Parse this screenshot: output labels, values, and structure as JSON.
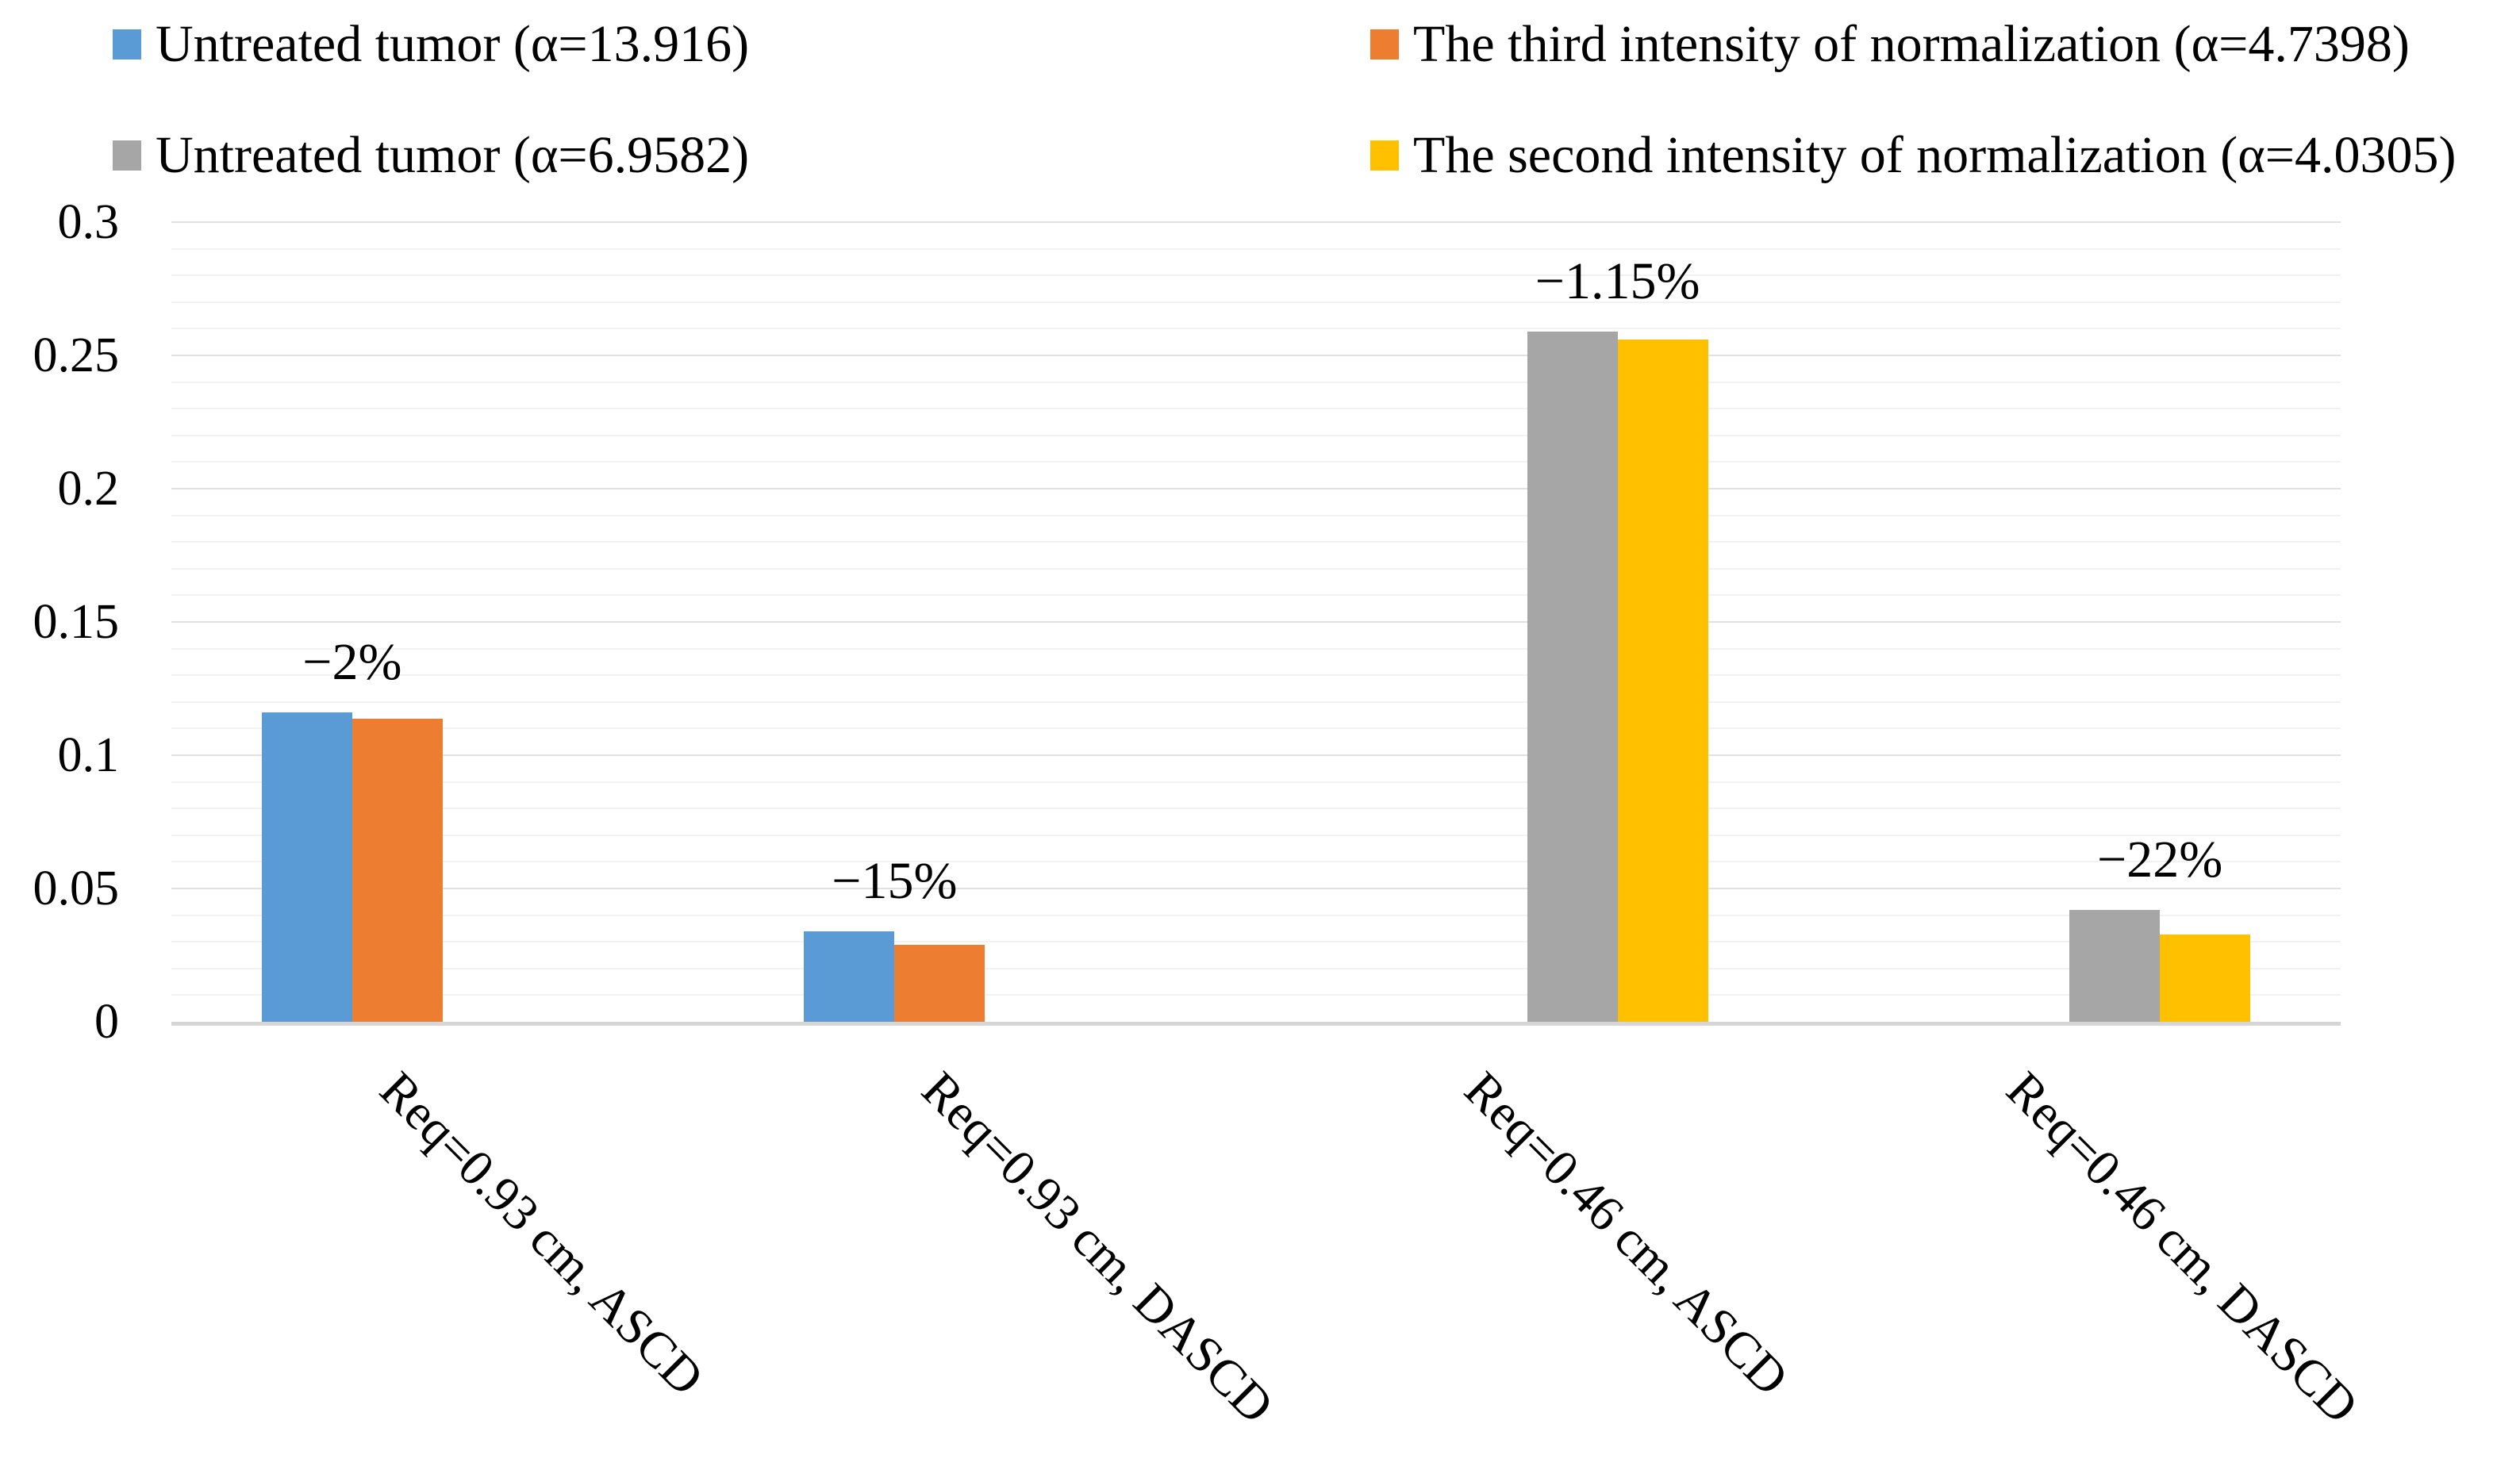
{
  "figure": {
    "background": "#ffffff",
    "text_color": "#000000"
  },
  "legend": {
    "position": "top",
    "items": [
      {
        "label": "Untreated tumor (α=13.916)",
        "color": "#5B9BD5"
      },
      {
        "label": "The third intensity of normalization (α=4.7398)",
        "color": "#ED7D31"
      },
      {
        "label": "Untreated tumor (α=6.9582)",
        "color": "#A6A6A6"
      },
      {
        "label": "The second intensity of normalization (α=4.0305)",
        "color": "#FFC000"
      }
    ]
  },
  "chart_data": {
    "type": "bar",
    "categories": [
      "Req=0.93 cm, ASCD",
      "Req=0.93 cm, DASCD",
      "Req=0.46 cm, ASCD",
      "Req=0.46 cm, DASCD"
    ],
    "series": [
      {
        "name": "Untreated tumor (α=13.916)",
        "color": "#5B9BD5",
        "values": [
          0.116,
          0.034,
          null,
          null
        ]
      },
      {
        "name": "The third intensity of normalization (α=4.7398)",
        "color": "#ED7D31",
        "values": [
          0.1137,
          0.0289,
          null,
          null
        ]
      },
      {
        "name": "Untreated tumor (α=6.9582)",
        "color": "#A6A6A6",
        "values": [
          null,
          null,
          0.259,
          0.042
        ]
      },
      {
        "name": "The second intensity of normalization (α=4.0305)",
        "color": "#FFC000",
        "values": [
          null,
          null,
          0.256,
          0.0328
        ]
      }
    ],
    "annotations": [
      {
        "category_index": 0,
        "label": "−2%"
      },
      {
        "category_index": 1,
        "label": "−15%"
      },
      {
        "category_index": 2,
        "label": "−1.15%"
      },
      {
        "category_index": 3,
        "label": "−22%"
      }
    ],
    "y_axis": {
      "min": 0,
      "max": 0.3,
      "major_step": 0.05,
      "minor_step": 0.01,
      "tick_labels": [
        "0.3",
        "0.25",
        "0.2",
        "0.15",
        "0.1",
        "0.05",
        "0"
      ]
    },
    "x_axis": {
      "label_rotation_deg": 45
    },
    "grid": {
      "major_horizontal": true,
      "minor_horizontal": true
    },
    "legend_position": "top",
    "colors": {
      "major_grid": "#e0e0e0",
      "minor_grid": "#f2f2f2",
      "axis_line": "#d6d6d6"
    }
  }
}
